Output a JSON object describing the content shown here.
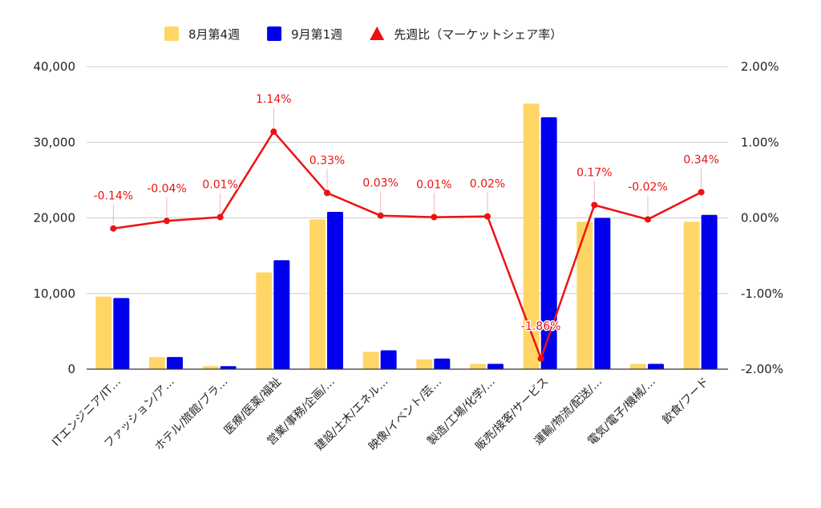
{
  "chart_data": {
    "type": "bar",
    "categories": [
      "ITエンジニア/IT…",
      "ファッション/ア…",
      "ホテル/旅館/ブラ…",
      "医療/医薬/福祉",
      "営業/事務/企画/…",
      "建設/土木/エネル…",
      "映像/イベント/芸…",
      "製造/工場/化学/…",
      "販売/接客/サービス",
      "運輸/物流/配送/…",
      "電気/電子/機械/…",
      "飲食/フード"
    ],
    "series": [
      {
        "name": "8月第4週",
        "type": "bar",
        "axis": "left",
        "color": "#FFD666",
        "values": [
          9600,
          1600,
          400,
          12800,
          19800,
          2300,
          1300,
          700,
          35100,
          19500,
          700,
          19500
        ]
      },
      {
        "name": "9月第1週",
        "type": "bar",
        "axis": "left",
        "color": "#0000EE",
        "values": [
          9400,
          1600,
          400,
          14400,
          20800,
          2500,
          1400,
          700,
          33300,
          20000,
          700,
          20400
        ]
      },
      {
        "name": "先週比（マーケットシェア率）",
        "type": "line",
        "axis": "right",
        "color": "#EE1111",
        "values": [
          -0.14,
          -0.04,
          0.01,
          1.14,
          0.33,
          0.03,
          0.01,
          0.02,
          -1.86,
          0.17,
          -0.02,
          0.34
        ],
        "labels": [
          "-0.14%",
          "-0.04%",
          "0.01%",
          "1.14%",
          "0.33%",
          "0.03%",
          "0.01%",
          "0.02%",
          "-1.86%",
          "0.17%",
          "-0.02%",
          "0.34%"
        ]
      }
    ],
    "y_left": {
      "min": 0,
      "max": 40000,
      "ticks": [
        0,
        10000,
        20000,
        30000,
        40000
      ],
      "tick_labels": [
        "0",
        "10,000",
        "20,000",
        "30,000",
        "40,000"
      ]
    },
    "y_right": {
      "min": -2,
      "max": 2,
      "ticks": [
        -2,
        -1,
        0,
        1,
        2
      ],
      "tick_labels": [
        "-2.00%",
        "-1.00%",
        "0.00%",
        "1.00%",
        "2.00%"
      ]
    },
    "grid": true,
    "legend_position": "top-center"
  }
}
